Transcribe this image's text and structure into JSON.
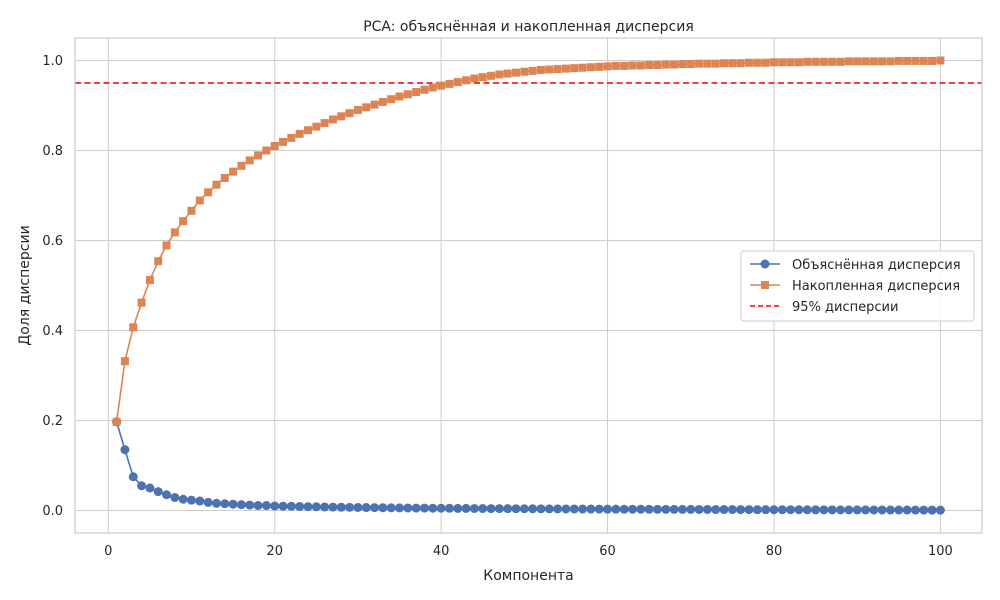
{
  "chart_data": {
    "type": "line",
    "title": "PCA: объяснённая и накопленная дисперсия",
    "xlabel": "Компонента",
    "ylabel": "Доля дисперсии",
    "xlim": [
      -4,
      105
    ],
    "ylim": [
      -0.05,
      1.05
    ],
    "x_ticks": [
      0,
      20,
      40,
      60,
      80,
      100
    ],
    "y_ticks": [
      0.0,
      0.2,
      0.4,
      0.6,
      0.8,
      1.0
    ],
    "grid": true,
    "legend_position": "center-right",
    "threshold": {
      "name": "95% дисперсии",
      "value": 0.95,
      "color": "#e8000b",
      "style": "dashed"
    },
    "series": [
      {
        "name": "Объяснённая дисперсия",
        "color": "#4c72b0",
        "marker": "circle",
        "x_start": 1,
        "values": [
          0.197,
          0.135,
          0.075,
          0.055,
          0.05,
          0.042,
          0.035,
          0.029,
          0.025,
          0.023,
          0.021,
          0.018,
          0.016,
          0.015,
          0.014,
          0.013,
          0.012,
          0.011,
          0.011,
          0.01,
          0.0095,
          0.0092,
          0.0088,
          0.0085,
          0.0082,
          0.0079,
          0.0076,
          0.0073,
          0.007,
          0.0068,
          0.0066,
          0.0064,
          0.0062,
          0.006,
          0.0058,
          0.0056,
          0.0054,
          0.0053,
          0.0051,
          0.005,
          0.0049,
          0.0047,
          0.0046,
          0.0045,
          0.0044,
          0.0043,
          0.0042,
          0.0041,
          0.004,
          0.0039,
          0.0038,
          0.0037,
          0.0036,
          0.0035,
          0.0034,
          0.0034,
          0.0033,
          0.0032,
          0.0031,
          0.003,
          0.003,
          0.0029,
          0.0028,
          0.0028,
          0.0027,
          0.0026,
          0.0026,
          0.0025,
          0.0024,
          0.0024,
          0.0023,
          0.0023,
          0.0022,
          0.0021,
          0.0021,
          0.002,
          0.002,
          0.0019,
          0.0019,
          0.0018,
          0.0018,
          0.0017,
          0.0017,
          0.0016,
          0.0016,
          0.0015,
          0.0015,
          0.0014,
          0.0014,
          0.0013,
          0.0013,
          0.0012,
          0.0012,
          0.0011,
          0.0011,
          0.001,
          0.001,
          0.0009,
          0.0009,
          0.0008
        ]
      },
      {
        "name": "Накопленная дисперсия",
        "color": "#dd8452",
        "marker": "square",
        "x_start": 1,
        "values": [
          0.197,
          0.332,
          0.407,
          0.462,
          0.512,
          0.554,
          0.589,
          0.618,
          0.643,
          0.666,
          0.689,
          0.707,
          0.724,
          0.739,
          0.753,
          0.766,
          0.778,
          0.789,
          0.8,
          0.81,
          0.819,
          0.828,
          0.837,
          0.845,
          0.853,
          0.861,
          0.869,
          0.876,
          0.883,
          0.89,
          0.896,
          0.902,
          0.908,
          0.914,
          0.92,
          0.925,
          0.93,
          0.935,
          0.94,
          0.944,
          0.948,
          0.952,
          0.956,
          0.96,
          0.963,
          0.966,
          0.969,
          0.971,
          0.973,
          0.975,
          0.977,
          0.979,
          0.98,
          0.981,
          0.982,
          0.983,
          0.984,
          0.985,
          0.986,
          0.987,
          0.988,
          0.988,
          0.989,
          0.989,
          0.99,
          0.99,
          0.991,
          0.991,
          0.992,
          0.992,
          0.993,
          0.993,
          0.993,
          0.994,
          0.994,
          0.994,
          0.995,
          0.995,
          0.995,
          0.996,
          0.996,
          0.996,
          0.996,
          0.997,
          0.997,
          0.997,
          0.997,
          0.997,
          0.998,
          0.998,
          0.998,
          0.998,
          0.998,
          0.998,
          0.999,
          0.999,
          0.999,
          0.999,
          0.999,
          1.0
        ]
      }
    ]
  }
}
